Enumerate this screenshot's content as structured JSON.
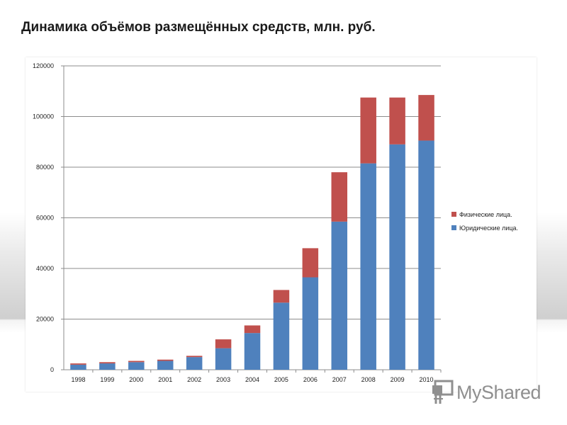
{
  "page": {
    "title": "Динамика объёмов размещённых средств, млн. руб."
  },
  "chart_data": {
    "type": "bar",
    "stacked": true,
    "title": "",
    "xlabel": "",
    "ylabel": "",
    "categories": [
      "1998",
      "1999",
      "2000",
      "2001",
      "2002",
      "2003",
      "2004",
      "2005",
      "2006",
      "2007",
      "2008",
      "2009",
      "2010"
    ],
    "series": [
      {
        "name": "Юридические лица.",
        "color": "#4f81bd",
        "values": [
          2000,
          2500,
          3000,
          3500,
          5000,
          8500,
          14500,
          26500,
          36500,
          58500,
          81500,
          89000,
          90500
        ]
      },
      {
        "name": "Физические лица.",
        "color": "#c0504d",
        "values": [
          500,
          500,
          500,
          500,
          500,
          3500,
          3000,
          5000,
          11500,
          19500,
          26000,
          18500,
          18000
        ]
      }
    ],
    "ylim": [
      0,
      120000
    ],
    "yticks": [
      "0",
      "20000",
      "40000",
      "60000",
      "80000",
      "100000",
      "120000"
    ],
    "grid": true,
    "legend_position": "right"
  },
  "watermark": {
    "text": "MyShared",
    "icon": "presentation-board-icon"
  }
}
